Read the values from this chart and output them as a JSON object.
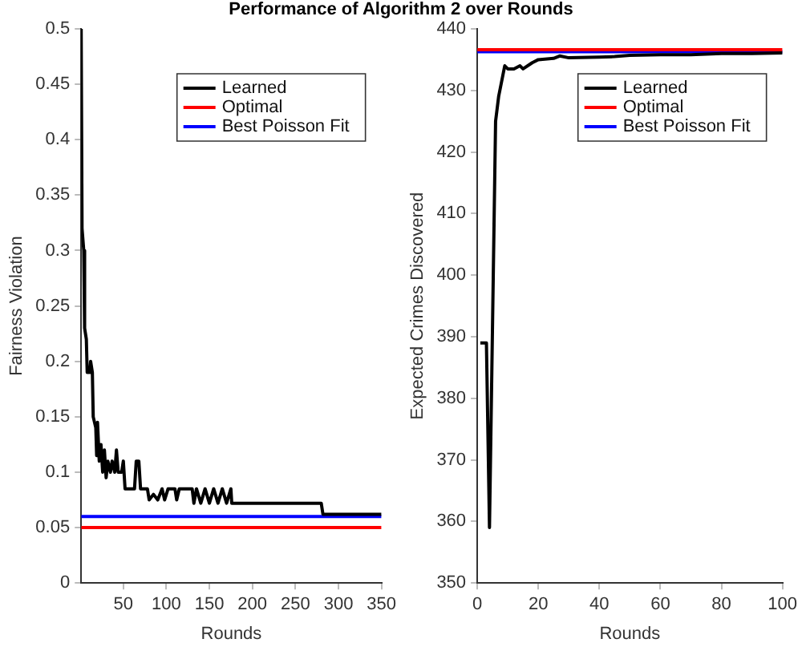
{
  "chart_data": [
    {
      "type": "line",
      "title": "Performance of Algorithm 2 over Rounds",
      "xlabel": "Rounds",
      "ylabel": "Fairness Violation",
      "xlim": [
        1,
        350
      ],
      "xticks": [
        50,
        100,
        150,
        200,
        250,
        300,
        350
      ],
      "ylim": [
        0,
        0.5
      ],
      "yticks": [
        0,
        0.05,
        0.1,
        0.15,
        0.2,
        0.25,
        0.3,
        0.35,
        0.4,
        0.45,
        0.5
      ],
      "grid": false,
      "legend": "top right",
      "marker": "none",
      "series": [
        {
          "name": "Learned",
          "color": "#000000",
          "x": [
            1,
            2,
            4,
            5,
            7,
            8,
            11,
            12,
            14,
            15,
            18,
            19,
            20,
            22,
            24,
            26,
            28,
            30,
            32,
            35,
            37,
            40,
            42,
            44,
            48,
            50,
            52,
            63,
            65,
            68,
            70,
            78,
            80,
            85,
            90,
            95,
            98,
            102,
            110,
            112,
            115,
            130,
            132,
            135,
            140,
            145,
            150,
            155,
            160,
            165,
            170,
            175,
            176,
            280,
            282,
            350
          ],
          "values": [
            0.5,
            0.32,
            0.3,
            0.23,
            0.22,
            0.19,
            0.19,
            0.2,
            0.19,
            0.15,
            0.14,
            0.115,
            0.145,
            0.11,
            0.125,
            0.1,
            0.12,
            0.095,
            0.11,
            0.1,
            0.11,
            0.1,
            0.12,
            0.1,
            0.1,
            0.11,
            0.085,
            0.085,
            0.11,
            0.11,
            0.085,
            0.085,
            0.075,
            0.08,
            0.075,
            0.085,
            0.075,
            0.085,
            0.085,
            0.075,
            0.085,
            0.085,
            0.072,
            0.085,
            0.072,
            0.085,
            0.072,
            0.085,
            0.072,
            0.085,
            0.072,
            0.085,
            0.072,
            0.072,
            0.062,
            0.062
          ]
        },
        {
          "name": "Optimal",
          "color": "#ff0000",
          "x": [
            1,
            350
          ],
          "values": [
            0.05,
            0.05
          ]
        },
        {
          "name": "Best Poisson Fit",
          "color": "#0000ff",
          "x": [
            1,
            350
          ],
          "values": [
            0.06,
            0.06
          ]
        }
      ]
    },
    {
      "type": "line",
      "xlabel": "Rounds",
      "ylabel": "Expected Crimes Discovered",
      "xlim": [
        0,
        100
      ],
      "xticks": [
        0,
        20,
        40,
        60,
        80,
        100
      ],
      "ylim": [
        350,
        440
      ],
      "yticks": [
        350,
        360,
        370,
        380,
        390,
        400,
        410,
        420,
        430,
        440
      ],
      "grid": false,
      "legend": "top right",
      "marker": "none",
      "series": [
        {
          "name": "Learned",
          "color": "#000000",
          "x": [
            1,
            3,
            4,
            6,
            7,
            9,
            10,
            12,
            14,
            15,
            18,
            20,
            25,
            27,
            30,
            40,
            45,
            50,
            60,
            70,
            80,
            90,
            100
          ],
          "values": [
            389,
            389,
            359,
            425,
            429,
            434,
            433.5,
            433.5,
            434,
            433.5,
            434.5,
            435,
            435.2,
            435.6,
            435.3,
            435.4,
            435.5,
            435.7,
            435.8,
            435.8,
            436,
            436,
            436.1
          ]
        },
        {
          "name": "Optimal",
          "color": "#ff0000",
          "x": [
            0,
            100
          ],
          "values": [
            436.6,
            436.6
          ]
        },
        {
          "name": "Best Poisson Fit",
          "color": "#0000ff",
          "x": [
            0,
            100
          ],
          "values": [
            436.3,
            436.3
          ]
        }
      ]
    }
  ]
}
